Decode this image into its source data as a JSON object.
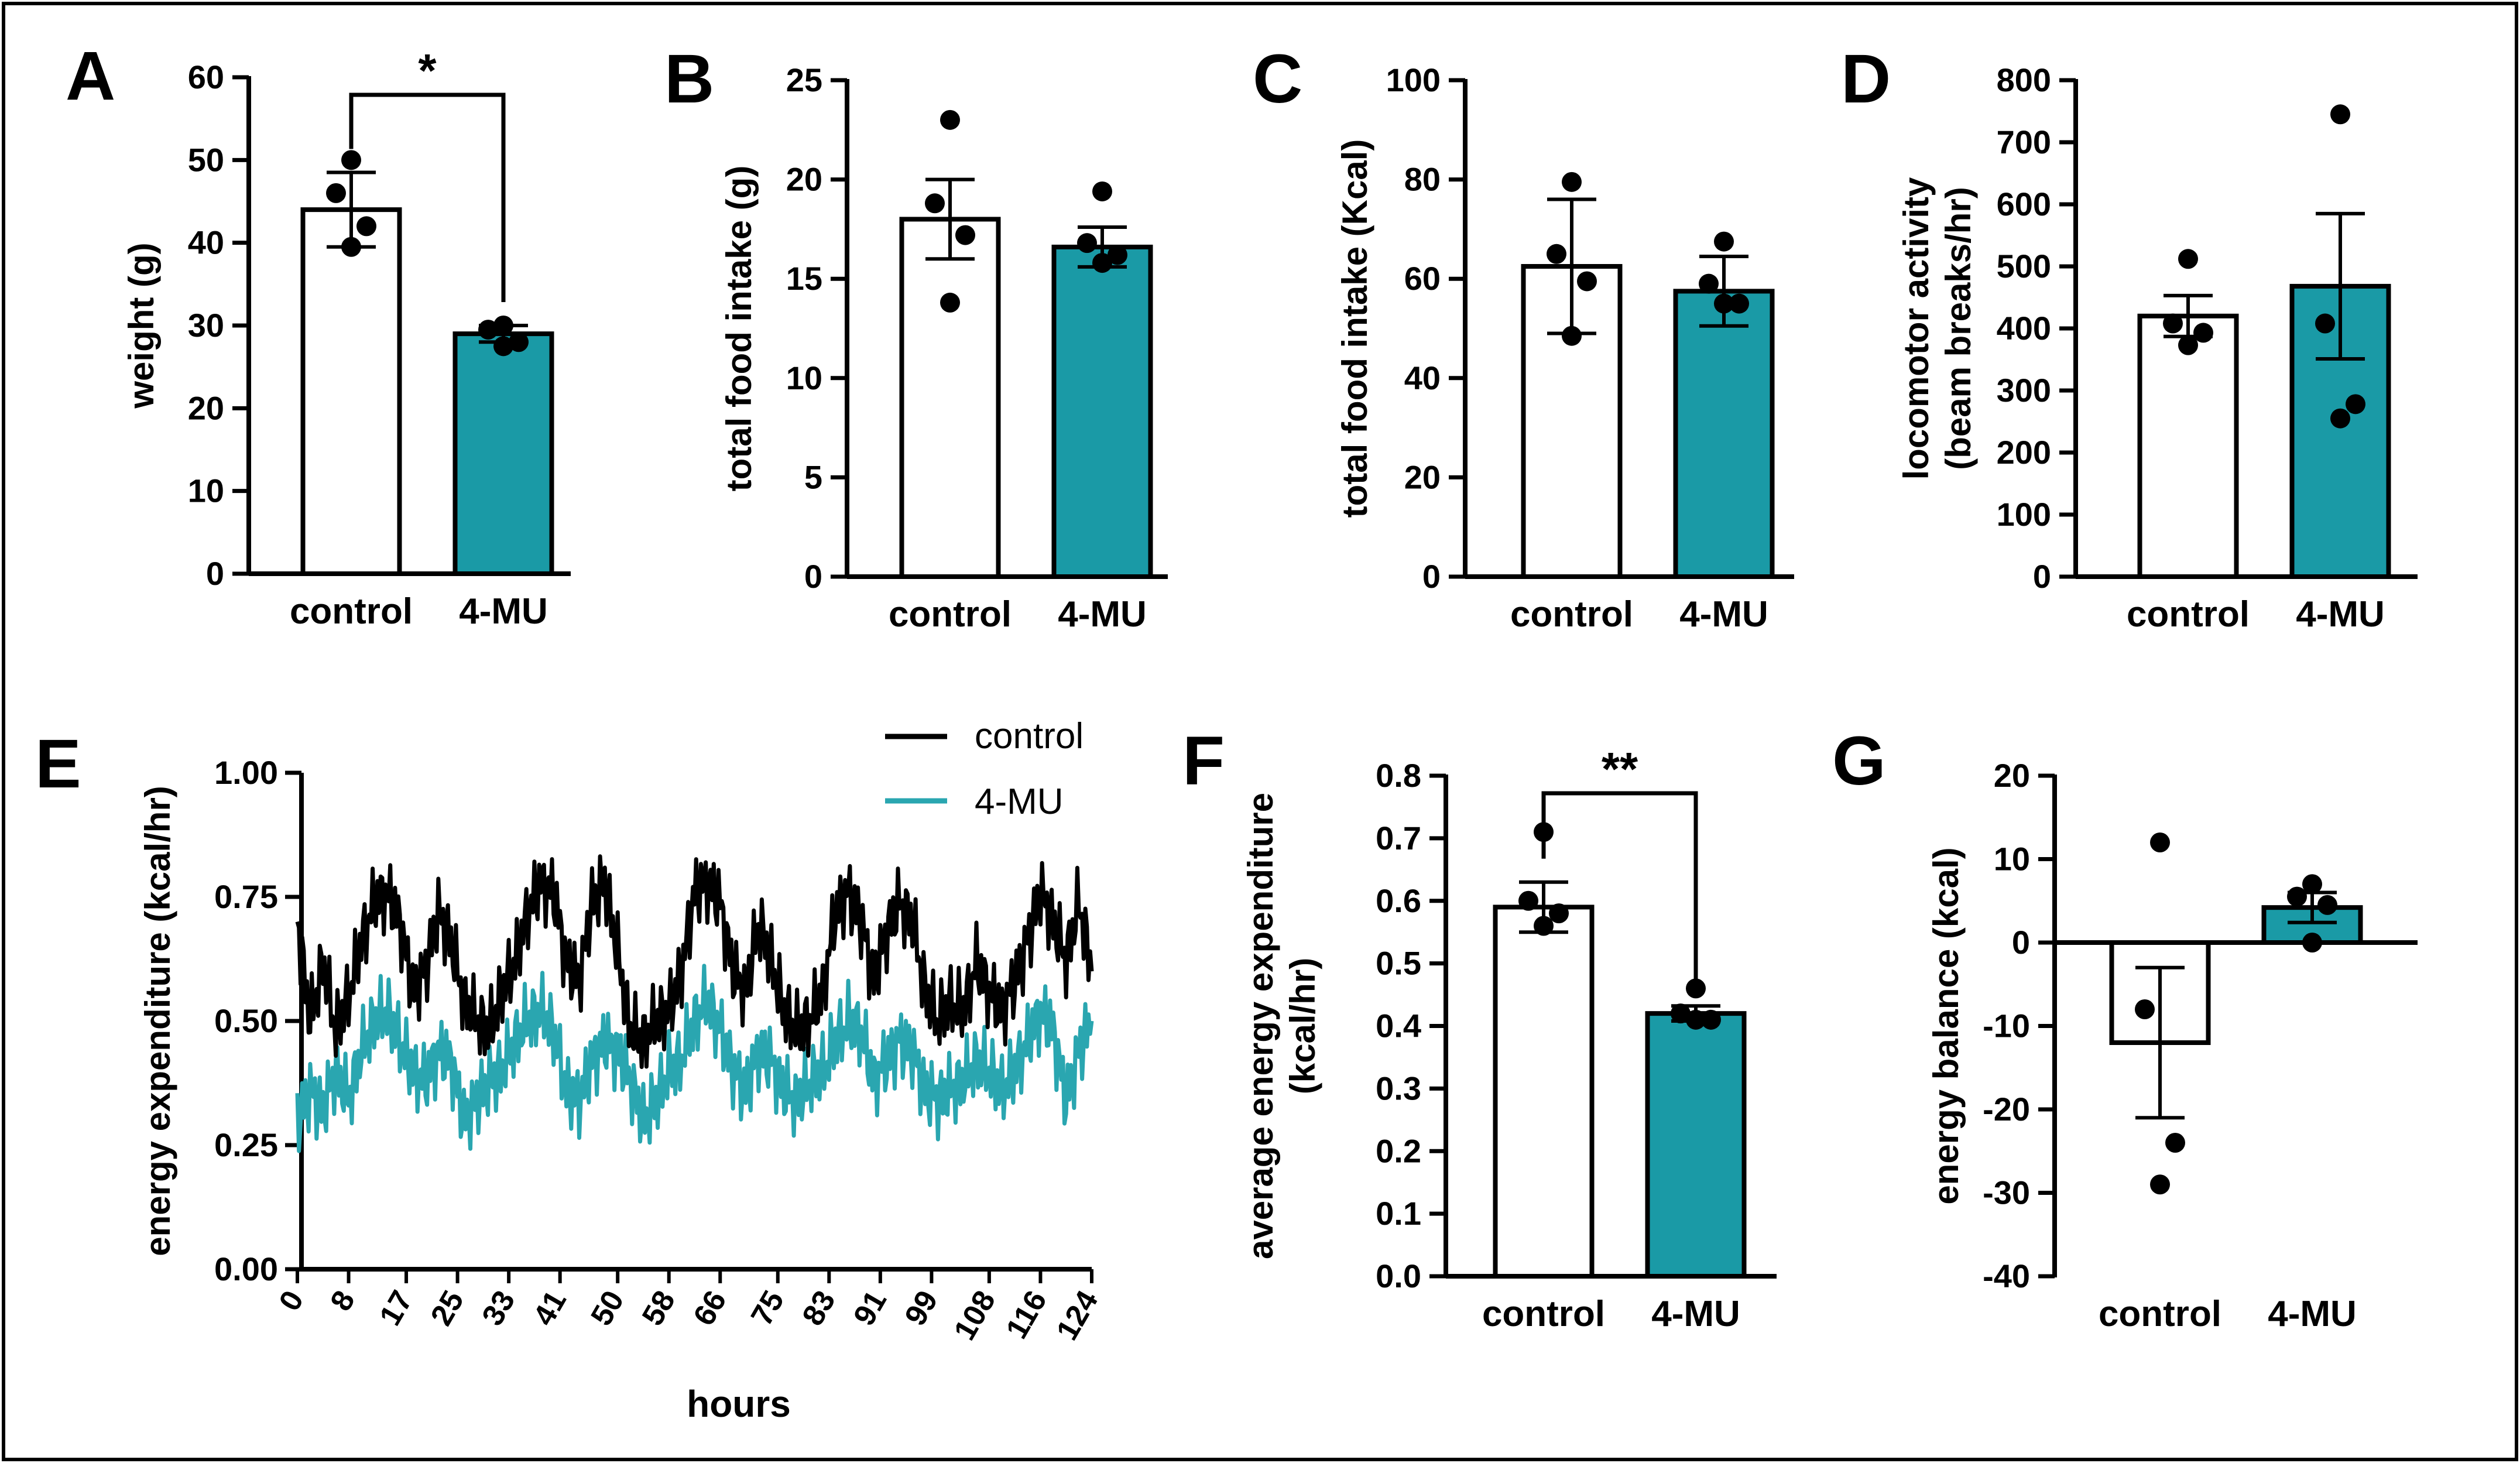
{
  "colors": {
    "teal": "#1a9aa6",
    "teal_line": "#2aa6b0",
    "black": "#000000",
    "white": "#ffffff"
  },
  "chart_data": [
    {
      "panel": "A",
      "type": "bar",
      "categories": [
        "control",
        "4-MU"
      ],
      "values": [
        44.0,
        29.0
      ],
      "sem": [
        4.5,
        1.0
      ],
      "points": [
        [
          50.0,
          46.0,
          42.0,
          39.5
        ],
        [
          30.0,
          29.5,
          28.0,
          27.5
        ]
      ],
      "ylabel": "weight (g)",
      "ylim": [
        0,
        60
      ],
      "yticks": [
        0,
        10,
        20,
        30,
        40,
        50,
        60
      ],
      "significance": "*"
    },
    {
      "panel": "B",
      "type": "bar",
      "categories": [
        "control",
        "4-MU"
      ],
      "values": [
        18.0,
        16.6
      ],
      "sem": [
        2.0,
        1.0
      ],
      "points": [
        [
          23.0,
          18.8,
          17.2,
          13.8
        ],
        [
          19.4,
          16.8,
          16.2,
          15.8
        ]
      ],
      "ylabel": "total food intake (g)",
      "ylim": [
        0,
        25
      ],
      "yticks": [
        0,
        5,
        10,
        15,
        20,
        25
      ],
      "significance": ""
    },
    {
      "panel": "C",
      "type": "bar",
      "categories": [
        "control",
        "4-MU"
      ],
      "values": [
        62.5,
        57.5
      ],
      "sem": [
        13.5,
        7.0
      ],
      "points": [
        [
          79.5,
          65.0,
          59.5,
          48.5
        ],
        [
          67.5,
          59.0,
          55.0,
          55.0
        ]
      ],
      "ylabel": "total food intake (Kcal)",
      "ylim": [
        0,
        100
      ],
      "yticks": [
        0,
        20,
        40,
        60,
        80,
        100
      ],
      "significance": ""
    },
    {
      "panel": "D",
      "type": "bar",
      "categories": [
        "control",
        "4-MU"
      ],
      "values": [
        420,
        468
      ],
      "sem": [
        33,
        117
      ],
      "points": [
        [
          512,
          408,
          393,
          373
        ],
        [
          745,
          408,
          278,
          255
        ]
      ],
      "ylabel": "locomotor activity (beam breaks/hr)",
      "ylabel_lines": [
        "locomotor activity",
        "(beam breaks/hr)"
      ],
      "ylim": [
        0,
        800
      ],
      "yticks": [
        0,
        100,
        200,
        300,
        400,
        500,
        600,
        700,
        800
      ],
      "significance": ""
    },
    {
      "panel": "E",
      "type": "line",
      "title": "",
      "xlabel": "hours",
      "ylabel": "energy expenditure (kcal/hr)",
      "xlim": [
        0,
        124
      ],
      "ylim": [
        0.0,
        1.0
      ],
      "yticks": [
        "0.00",
        "0.25",
        "0.50",
        "0.75",
        "1.00"
      ],
      "xticks": [
        0,
        8,
        17,
        25,
        33,
        41,
        50,
        58,
        66,
        75,
        83,
        91,
        99,
        108,
        116,
        124
      ],
      "legend": [
        "control",
        "4-MU"
      ],
      "legend_position": "top-right",
      "series": [
        {
          "name": "control",
          "x": [
            0,
            2,
            4,
            6,
            8,
            10,
            12,
            14,
            16,
            18,
            20,
            22,
            24,
            26,
            28,
            30,
            32,
            34,
            36,
            38,
            40,
            42,
            44,
            46,
            48,
            50,
            52,
            54,
            56,
            58,
            60,
            62,
            64,
            66,
            68,
            70,
            72,
            74,
            76,
            78,
            80,
            82,
            84,
            86,
            88,
            90,
            92,
            94,
            96,
            98,
            100,
            102,
            104,
            106,
            108,
            110,
            112,
            114,
            116,
            118,
            120,
            122,
            124
          ],
          "values": [
            0.7,
            0.5,
            0.62,
            0.48,
            0.55,
            0.66,
            0.74,
            0.76,
            0.7,
            0.56,
            0.6,
            0.72,
            0.66,
            0.54,
            0.5,
            0.48,
            0.56,
            0.62,
            0.72,
            0.78,
            0.76,
            0.62,
            0.58,
            0.74,
            0.78,
            0.64,
            0.48,
            0.46,
            0.5,
            0.52,
            0.6,
            0.76,
            0.78,
            0.74,
            0.6,
            0.56,
            0.7,
            0.62,
            0.52,
            0.48,
            0.5,
            0.56,
            0.72,
            0.76,
            0.7,
            0.58,
            0.68,
            0.74,
            0.7,
            0.56,
            0.5,
            0.54,
            0.52,
            0.62,
            0.56,
            0.52,
            0.58,
            0.66,
            0.76,
            0.7,
            0.62,
            0.74,
            0.6
          ]
        },
        {
          "name": "4-MU",
          "x": [
            0,
            2,
            4,
            6,
            8,
            10,
            12,
            14,
            16,
            18,
            20,
            22,
            24,
            26,
            28,
            30,
            32,
            34,
            36,
            38,
            40,
            42,
            44,
            46,
            48,
            50,
            52,
            54,
            56,
            58,
            60,
            62,
            64,
            66,
            68,
            70,
            72,
            74,
            76,
            78,
            80,
            82,
            84,
            86,
            88,
            90,
            92,
            94,
            96,
            98,
            100,
            102,
            104,
            106,
            108,
            110,
            112,
            114,
            116,
            118,
            120,
            122,
            124
          ],
          "values": [
            0.3,
            0.36,
            0.32,
            0.4,
            0.34,
            0.44,
            0.5,
            0.52,
            0.46,
            0.4,
            0.38,
            0.44,
            0.42,
            0.3,
            0.34,
            0.38,
            0.4,
            0.46,
            0.5,
            0.52,
            0.48,
            0.36,
            0.34,
            0.42,
            0.46,
            0.44,
            0.38,
            0.3,
            0.34,
            0.4,
            0.42,
            0.5,
            0.54,
            0.48,
            0.4,
            0.36,
            0.44,
            0.42,
            0.36,
            0.34,
            0.38,
            0.4,
            0.46,
            0.5,
            0.48,
            0.38,
            0.42,
            0.46,
            0.44,
            0.36,
            0.34,
            0.36,
            0.38,
            0.42,
            0.4,
            0.36,
            0.4,
            0.46,
            0.52,
            0.48,
            0.34,
            0.44,
            0.5
          ]
        }
      ]
    },
    {
      "panel": "F",
      "type": "bar",
      "categories": [
        "control",
        "4-MU"
      ],
      "values": [
        0.59,
        0.42
      ],
      "sem": [
        0.04,
        0.012
      ],
      "points": [
        [
          0.71,
          0.6,
          0.58,
          0.56
        ],
        [
          0.46,
          0.42,
          0.41,
          0.41
        ]
      ],
      "ylabel": "average energy expenditure (kcal/hr)",
      "ylabel_lines": [
        "average energy expenditure",
        "(kcal/hr)"
      ],
      "ylim": [
        0.0,
        0.8
      ],
      "yticks": [
        "0.0",
        "0.1",
        "0.2",
        "0.3",
        "0.4",
        "0.5",
        "0.6",
        "0.7",
        "0.8"
      ],
      "significance": "**"
    },
    {
      "panel": "G",
      "type": "bar",
      "categories": [
        "control",
        "4-MU"
      ],
      "values": [
        -12.0,
        4.2
      ],
      "sem": [
        9.0,
        1.8
      ],
      "points": [
        [
          12.0,
          -8.0,
          -24.0,
          -29.0
        ],
        [
          7.0,
          5.5,
          4.5,
          0.0
        ]
      ],
      "ylabel": "energy balance (kcal)",
      "ylim": [
        -40,
        20
      ],
      "yticks": [
        -40,
        -30,
        -20,
        -10,
        0,
        10,
        20
      ],
      "significance": ""
    }
  ]
}
